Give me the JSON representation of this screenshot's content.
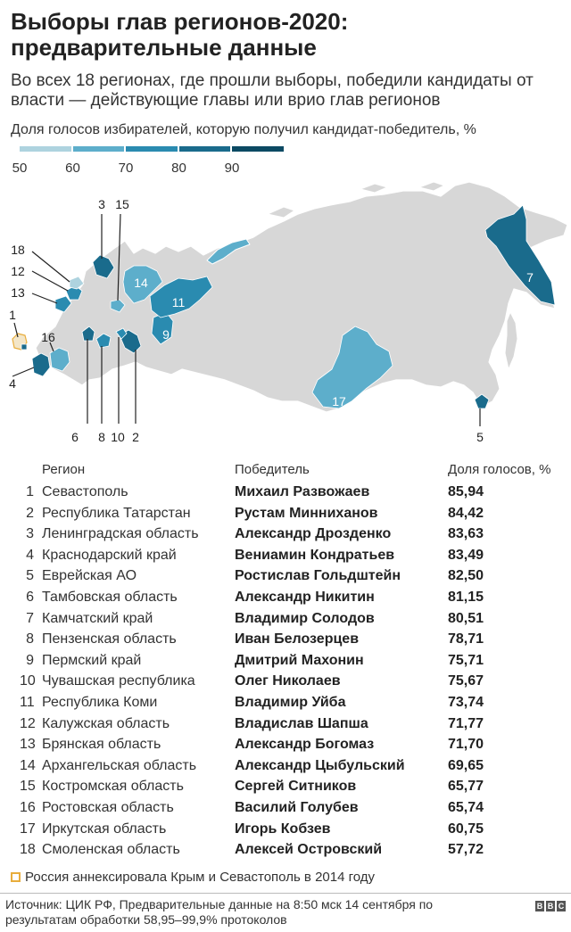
{
  "title": "Выборы глав регионов-2020: предварительные данные",
  "subtitle": "Во всех 18 регионах, где прошли выборы, победили кандидаты от власти — действующие главы или врио глав регионов",
  "legend_title": "Доля голосов избирателей, которую получил кандидат-победитель, %",
  "scale": {
    "ticks": [
      "50",
      "60",
      "70",
      "80",
      "90"
    ],
    "colors": [
      "#aed3df",
      "#5daecb",
      "#2a8bb0",
      "#1a6b8c",
      "#0c4a63"
    ]
  },
  "colors": {
    "land": "#d7d7d7",
    "border": "#ffffff",
    "crimea": "#f3e6c8",
    "crimea_border": "#e8ad3c"
  },
  "table": {
    "headers": {
      "region": "Регион",
      "winner": "Победитель",
      "share": "Доля голосов, %"
    }
  },
  "chart_data": {
    "type": "table",
    "title": "Выборы глав регионов-2020: предварительные данные",
    "rows": [
      {
        "num": "1",
        "region": "Севастополь",
        "winner": "Михаил Развожаев",
        "share": "85,94"
      },
      {
        "num": "2",
        "region": "Республика Татарстан",
        "winner": "Рустам Минниханов",
        "share": "84,42"
      },
      {
        "num": "3",
        "region": "Ленинградская область",
        "winner": "Александр Дрозденко",
        "share": "83,63"
      },
      {
        "num": "4",
        "region": "Краснодарский край",
        "winner": "Вениамин Кондратьев",
        "share": "83,49"
      },
      {
        "num": "5",
        "region": "Еврейская АО",
        "winner": "Ростислав Гольдштейн",
        "share": "82,50"
      },
      {
        "num": "6",
        "region": "Тамбовская область",
        "winner": "Александр Никитин",
        "share": "81,15"
      },
      {
        "num": "7",
        "region": "Камчатский край",
        "winner": "Владимир Солодов",
        "share": "80,51"
      },
      {
        "num": "8",
        "region": "Пензенская область",
        "winner": "Иван Белозерцев",
        "share": "78,71"
      },
      {
        "num": "9",
        "region": "Пермский край",
        "winner": "Дмитрий Махонин",
        "share": "75,71"
      },
      {
        "num": "10",
        "region": "Чувашская республика",
        "winner": "Олег Николаев",
        "share": "75,67"
      },
      {
        "num": "11",
        "region": "Республика Коми",
        "winner": "Владимир Уйба",
        "share": "73,74"
      },
      {
        "num": "12",
        "region": "Калужская область",
        "winner": "Владислав Шапша",
        "share": "71,77"
      },
      {
        "num": "13",
        "region": "Брянская область",
        "winner": "Александр Богомаз",
        "share": "71,70"
      },
      {
        "num": "14",
        "region": "Архангельская область",
        "winner": "Александр Цыбульский",
        "share": "69,65"
      },
      {
        "num": "15",
        "region": "Костромская область",
        "winner": "Сергей Ситников",
        "share": "65,77"
      },
      {
        "num": "16",
        "region": "Ростовская область",
        "winner": "Василий Голубев",
        "share": "65,74"
      },
      {
        "num": "17",
        "region": "Иркутская область",
        "winner": "Игорь Кобзев",
        "share": "60,75"
      },
      {
        "num": "18",
        "region": "Смоленская область",
        "winner": "Алексей Островский",
        "share": "57,72"
      }
    ]
  },
  "note": "Россия аннексировала Крым и Севастополь в 2014 году",
  "source": "Источник: ЦИК РФ, Предварительные данные на 8:50 мск 14 сентября по результатам обработки 58,95–99,9%  протоколов",
  "brand": [
    "B",
    "B",
    "C"
  ]
}
